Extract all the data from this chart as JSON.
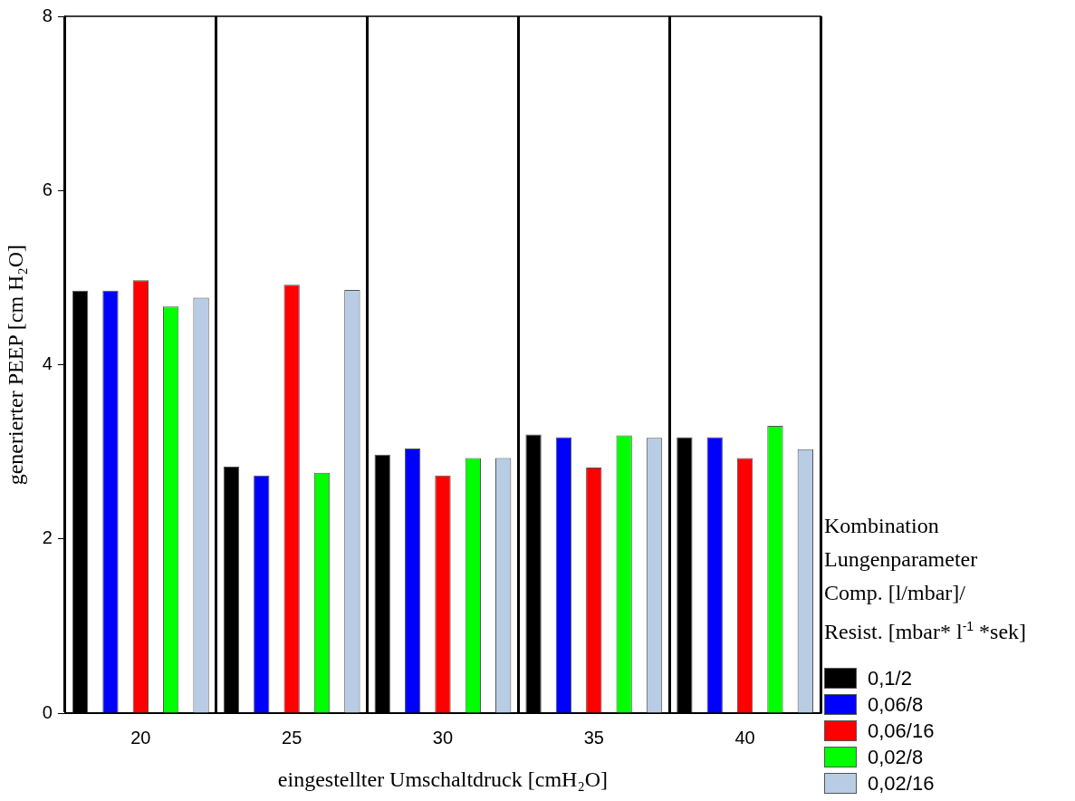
{
  "chart_data": {
    "type": "bar",
    "xlabel": "eingestellter Umschaltdruck [cmH₂O]",
    "ylabel": "generierter PEEP [cm H₂O]",
    "legend_title": "Kombination\nLungenparameter\nComp. [l/mbar]/\nResist. [mbar* l$^{-1}$ *sek]",
    "categories": [
      "20",
      "25",
      "30",
      "35",
      "40"
    ],
    "series": [
      {
        "name": "0,1/2",
        "color": "#000000",
        "values": [
          4.85,
          2.83,
          2.97,
          3.2,
          3.17
        ]
      },
      {
        "name": "0,06/8",
        "color": "#0000ff",
        "values": [
          4.85,
          2.73,
          3.04,
          3.17,
          3.17
        ]
      },
      {
        "name": "0,06/16",
        "color": "#ff0000",
        "values": [
          4.97,
          4.92,
          2.73,
          2.82,
          2.93
        ]
      },
      {
        "name": "0,02/8",
        "color": "#00ff00",
        "values": [
          4.67,
          2.76,
          2.93,
          3.19,
          3.3
        ]
      },
      {
        "name": "0,02/16",
        "color": "#b8cce4",
        "values": [
          4.77,
          4.86,
          2.93,
          3.16,
          3.03
        ]
      }
    ],
    "ylim": [
      0,
      8
    ],
    "yticks": [
      0,
      2,
      4,
      6,
      8
    ],
    "grid": "x",
    "legend": "right"
  }
}
